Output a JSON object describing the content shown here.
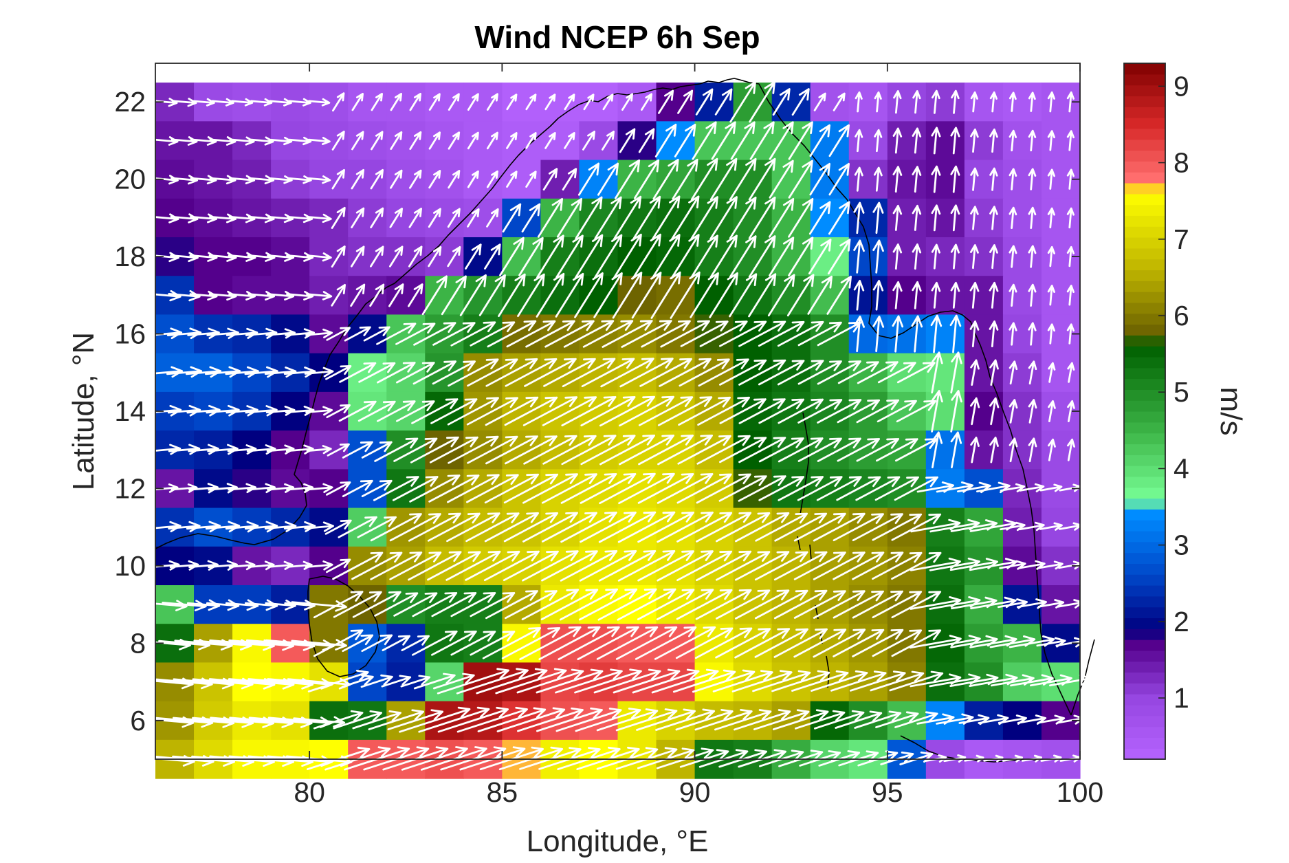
{
  "chart_data": {
    "type": "heatmap",
    "title": "Wind NCEP 6h Sep",
    "xlabel": "Longitude, °E",
    "ylabel": "Latitude, °N",
    "xlim": [
      76,
      100
    ],
    "ylim": [
      5,
      23
    ],
    "xticks": [
      80,
      85,
      90,
      95,
      100
    ],
    "yticks": [
      6,
      8,
      10,
      12,
      14,
      16,
      18,
      20,
      22
    ],
    "grid": false,
    "colorbar": {
      "label": "m/s",
      "range": [
        0.2,
        9.3
      ],
      "ticks": [
        1,
        2,
        3,
        4,
        5,
        6,
        7,
        8,
        9
      ],
      "placement": "right"
    },
    "grid_spacing_deg": 1,
    "lon_start": 76.5,
    "lat_rows": [
      22,
      21,
      20,
      19,
      18,
      17,
      16,
      15,
      14,
      13,
      12,
      11,
      10,
      9,
      8,
      7,
      6,
      5
    ],
    "wind_speed_ms": [
      [
        1.3,
        0.9,
        0.8,
        0.9,
        0.8,
        0.6,
        0.6,
        0.5,
        0.5,
        0.3,
        0.3,
        0.3,
        0.5,
        1.7,
        2.2,
        4.8,
        2.3,
        0.7,
        0.6,
        1.0,
        1.1,
        0.6,
        0.5,
        0.6
      ],
      [
        1.5,
        1.5,
        1.3,
        1.0,
        0.9,
        0.8,
        0.7,
        0.6,
        0.5,
        0.4,
        0.4,
        0.9,
        1.8,
        3.4,
        4.3,
        4.3,
        4.3,
        3.2,
        0.9,
        1.4,
        1.6,
        1.1,
        0.7,
        0.6
      ],
      [
        1.6,
        1.5,
        1.4,
        1.1,
        1.0,
        1.0,
        0.8,
        0.7,
        0.5,
        0.4,
        1.4,
        3.3,
        4.5,
        4.7,
        5.0,
        5.0,
        4.3,
        3.2,
        1.2,
        1.5,
        1.6,
        1.0,
        0.8,
        0.6
      ],
      [
        1.7,
        1.6,
        1.5,
        1.4,
        1.3,
        1.1,
        1.0,
        0.9,
        0.8,
        2.6,
        4.5,
        5.1,
        5.3,
        5.4,
        5.2,
        5.0,
        4.5,
        3.4,
        2.3,
        1.4,
        1.5,
        1.1,
        0.8,
        0.6
      ],
      [
        1.8,
        1.7,
        1.7,
        1.6,
        1.3,
        1.2,
        1.2,
        1.1,
        2.0,
        4.4,
        5.2,
        5.4,
        5.6,
        5.5,
        5.2,
        5.0,
        4.5,
        3.8,
        2.6,
        1.4,
        1.3,
        1.2,
        0.9,
        0.6
      ],
      [
        2.4,
        1.7,
        1.6,
        1.6,
        1.4,
        1.5,
        1.6,
        4.5,
        4.9,
        5.2,
        5.4,
        5.6,
        5.8,
        5.9,
        5.6,
        5.3,
        5.0,
        4.4,
        2.1,
        1.7,
        1.5,
        1.5,
        0.9,
        0.6
      ],
      [
        2.7,
        2.4,
        2.3,
        2.0,
        1.6,
        2.0,
        4.3,
        4.8,
        5.2,
        5.9,
        6.0,
        6.1,
        6.2,
        6.0,
        5.7,
        5.6,
        5.4,
        5.0,
        3.0,
        3.1,
        3.3,
        1.5,
        1.0,
        0.6
      ],
      [
        2.9,
        2.9,
        2.6,
        2.3,
        1.9,
        3.8,
        4.1,
        4.9,
        6.2,
        6.4,
        6.5,
        6.6,
        6.7,
        6.5,
        6.2,
        5.6,
        5.4,
        5.0,
        4.5,
        4.0,
        3.9,
        1.5,
        1.1,
        0.6
      ],
      [
        2.5,
        2.6,
        2.4,
        1.9,
        1.6,
        3.9,
        4.1,
        5.5,
        6.3,
        6.6,
        6.8,
        6.9,
        7.0,
        6.8,
        6.5,
        5.5,
        5.3,
        5.1,
        4.8,
        4.3,
        4.0,
        1.7,
        1.2,
        0.8
      ],
      [
        2.3,
        2.2,
        1.9,
        1.7,
        1.3,
        2.7,
        5.0,
        5.8,
        6.2,
        6.5,
        6.7,
        6.9,
        7.0,
        7.0,
        6.7,
        5.6,
        5.2,
        5.0,
        4.8,
        4.7,
        3.1,
        1.5,
        1.2,
        0.9
      ],
      [
        1.5,
        2.0,
        1.8,
        1.6,
        1.7,
        2.7,
        5.3,
        6.2,
        6.5,
        6.8,
        7.0,
        7.1,
        7.2,
        7.1,
        6.9,
        5.7,
        5.3,
        5.2,
        5.1,
        5.0,
        3.2,
        2.7,
        1.3,
        0.9
      ],
      [
        2.4,
        2.7,
        2.5,
        2.3,
        2.0,
        4.2,
        6.3,
        6.5,
        6.7,
        6.8,
        7.0,
        7.2,
        7.3,
        7.2,
        7.0,
        6.8,
        6.5,
        6.4,
        6.2,
        6.0,
        5.2,
        4.7,
        1.4,
        1.0
      ],
      [
        1.9,
        2.0,
        1.5,
        1.3,
        1.7,
        6.2,
        6.4,
        6.7,
        6.9,
        7.0,
        7.2,
        7.3,
        7.3,
        7.2,
        7.0,
        6.8,
        6.6,
        6.4,
        6.3,
        6.1,
        5.3,
        4.9,
        1.6,
        1.2
      ],
      [
        4.3,
        2.5,
        2.5,
        2.2,
        6.0,
        5.8,
        5.0,
        5.2,
        5.2,
        6.5,
        7.3,
        7.5,
        7.6,
        7.3,
        7.1,
        6.8,
        6.6,
        6.4,
        6.2,
        6.0,
        5.4,
        4.6,
        2.1,
        1.5
      ],
      [
        5.4,
        6.4,
        7.5,
        8.0,
        6.0,
        2.8,
        2.3,
        5.3,
        5.2,
        7.5,
        8.1,
        8.1,
        8.0,
        8.0,
        7.3,
        7.0,
        6.7,
        6.5,
        6.3,
        6.0,
        5.5,
        4.8,
        4.5,
        2.0
      ],
      [
        6.2,
        6.8,
        7.6,
        7.5,
        7.2,
        2.6,
        2.2,
        4.1,
        9.0,
        8.9,
        8.2,
        8.3,
        8.2,
        8.2,
        7.5,
        7.1,
        6.8,
        6.6,
        6.4,
        6.1,
        5.4,
        5.0,
        4.2,
        4.0
      ],
      [
        6.3,
        6.9,
        7.3,
        7.2,
        5.4,
        5.3,
        6.4,
        8.9,
        8.8,
        8.4,
        8.1,
        8.0,
        7.3,
        7.0,
        6.7,
        6.6,
        6.4,
        5.5,
        5.0,
        4.4,
        3.3,
        2.2,
        1.9,
        1.7
      ],
      [
        6.6,
        7.1,
        7.5,
        7.5,
        7.6,
        8.0,
        8.0,
        8.1,
        8.0,
        7.7,
        7.4,
        7.6,
        7.3,
        6.6,
        5.3,
        5.2,
        4.6,
        4.1,
        3.9,
        2.8,
        0.9,
        0.5,
        0.6,
        0.7
      ]
    ]
  }
}
